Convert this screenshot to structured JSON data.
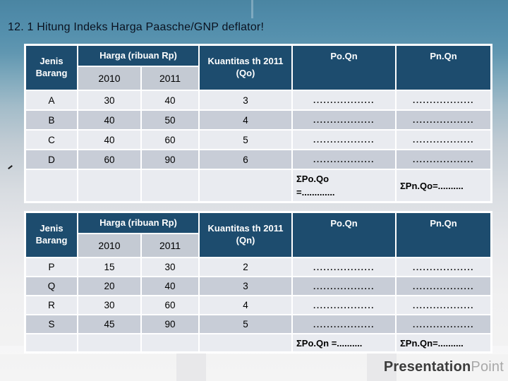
{
  "title": "12. 1 Hitung Indeks Harga Paasche/GNP deflator!",
  "watermark": {
    "primary": "Presentation",
    "secondary": "Point"
  },
  "colors": {
    "header_bg": "#1d4c6e",
    "row_light": "#e9ebf0",
    "row_dark": "#c8cdd7",
    "subheader_bg": "#c4cad3",
    "top_teal": "#4a85a2",
    "bottom_gray": "#f4f4f4"
  },
  "tables": [
    {
      "header": {
        "jenis": "Jenis Barang",
        "harga": "Harga (ribuan Rp)",
        "year_old": "2010",
        "year_new": "2011",
        "kuantitas": "Kuantitas th 2011 (Qo)",
        "po": "Po.Qn",
        "pn": "Pn.Qn"
      },
      "rows": [
        {
          "jenis": "A",
          "h2010": "30",
          "h2011": "40",
          "q": "3",
          "po": "..................",
          "pn": ".................."
        },
        {
          "jenis": "B",
          "h2010": "40",
          "h2011": "50",
          "q": "4",
          "po": "..................",
          "pn": ".................."
        },
        {
          "jenis": "C",
          "h2010": "40",
          "h2011": "60",
          "q": "5",
          "po": "..................",
          "pn": ".................."
        },
        {
          "jenis": "D",
          "h2010": "60",
          "h2011": "90",
          "q": "6",
          "po": "..................",
          "pn": ".................."
        }
      ],
      "sum": {
        "po": "ΣPo.Qo\n=.............",
        "pn": "ΣPn.Qo=.........."
      }
    },
    {
      "header": {
        "jenis": "Jenis Barang",
        "harga": "Harga (ribuan Rp)",
        "year_old": "2010",
        "year_new": "2011",
        "kuantitas": "Kuantitas th 2011 (Qn)",
        "po": "Po.Qn",
        "pn": "Pn.Qn"
      },
      "rows": [
        {
          "jenis": "P",
          "h2010": "15",
          "h2011": "30",
          "q": "2",
          "po": "..................",
          "pn": ".................."
        },
        {
          "jenis": "Q",
          "h2010": "20",
          "h2011": "40",
          "q": "3",
          "po": "..................",
          "pn": ".................."
        },
        {
          "jenis": "R",
          "h2010": "30",
          "h2011": "60",
          "q": "4",
          "po": "..................",
          "pn": ".................."
        },
        {
          "jenis": "S",
          "h2010": "45",
          "h2011": "90",
          "q": "5",
          "po": "..................",
          "pn": ".................."
        }
      ],
      "sum": {
        "po": "ΣPo.Qn =..........",
        "pn": "ΣPn.Qn=.........."
      }
    }
  ]
}
